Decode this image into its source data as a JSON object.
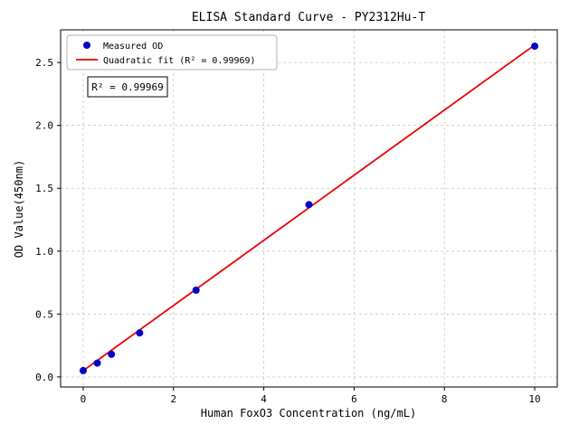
{
  "figure": {
    "background": "#ffffff"
  },
  "chart_data": {
    "type": "scatter",
    "title": "ELISA Standard Curve - PY2312Hu-T",
    "xlabel": "Human FoxO3 Concentration (ng/mL)",
    "ylabel": "OD Value(450nm)",
    "xlim": [
      -0.5,
      10.5
    ],
    "ylim": [
      -0.08,
      2.76
    ],
    "xticks": [
      0,
      2,
      4,
      6,
      8,
      10
    ],
    "xtick_labels": [
      "0",
      "2",
      "4",
      "6",
      "8",
      "10"
    ],
    "yticks": [
      0.0,
      0.5,
      1.0,
      1.5,
      2.0,
      2.5
    ],
    "ytick_labels": [
      "0.0",
      "0.5",
      "1.0",
      "1.5",
      "2.0",
      "2.5"
    ],
    "grid": true,
    "legend_position": "upper-left",
    "series": [
      {
        "name": "Measured OD",
        "type": "scatter",
        "color": "#0000cc",
        "x": [
          0,
          0.313,
          0.625,
          1.25,
          2.5,
          5,
          10
        ],
        "y": [
          0.05,
          0.11,
          0.18,
          0.35,
          0.69,
          1.37,
          2.63
        ]
      },
      {
        "name": "Quadratic fit (R² = 0.99969)",
        "type": "line",
        "color": "#ee0000",
        "x": [
          0,
          10
        ],
        "y": [
          0.05,
          2.64
        ]
      }
    ],
    "annotation": "R² = 0.99969"
  }
}
